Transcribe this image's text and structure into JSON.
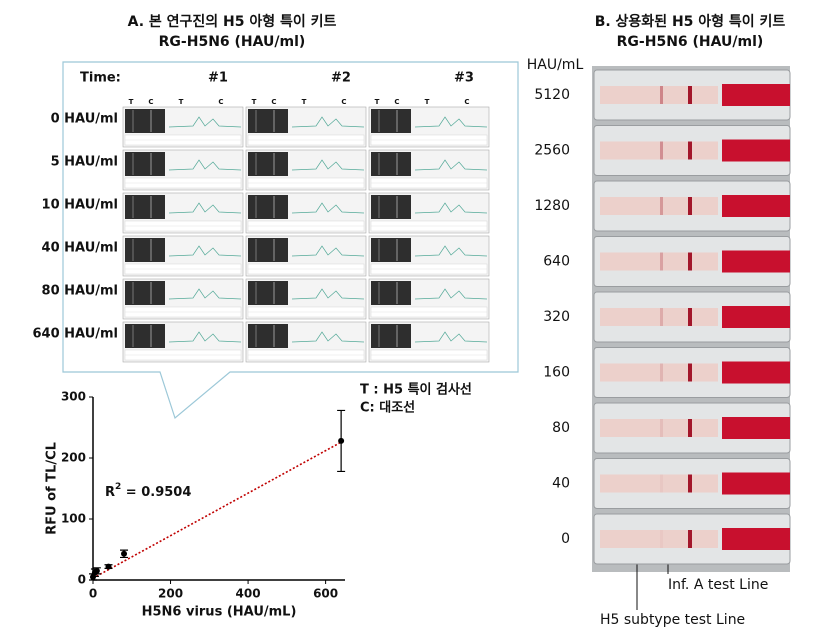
{
  "panel_a": {
    "title": "A. 본 연구진의 H5  아형 특이 키트",
    "subtitle": "RG-H5N6 (HAU/ml)",
    "time_label": "Time:",
    "columns": [
      "#1",
      "#2",
      "#3"
    ],
    "lane_labels": [
      "T",
      "C",
      "T",
      "C"
    ],
    "rows": [
      "0 HAU/ml",
      "5 HAU/ml",
      "10 HAU/ml",
      "40 HAU/ml",
      "80 HAU/ml",
      "640 HAU/ml"
    ],
    "legend": [
      "T : H5 특이 검사선",
      "C:  대조선"
    ]
  },
  "chart_data": {
    "type": "scatter",
    "x": [
      0,
      5,
      10,
      40,
      80,
      640
    ],
    "values": [
      5,
      12,
      15,
      22,
      43,
      228
    ],
    "errors": [
      5,
      6,
      5,
      3,
      6,
      50
    ],
    "color": "#000000",
    "trendline": {
      "x": [
        0,
        640
      ],
      "values": [
        3,
        226
      ],
      "color": "#c00000"
    },
    "xlim": [
      0,
      650
    ],
    "ylim": [
      0,
      300
    ],
    "xticks": [
      0,
      200,
      400,
      600
    ],
    "yticks": [
      0,
      100,
      200,
      300
    ],
    "xlabel": "H5N6 virus (HAU/mL)",
    "ylabel": "RFU of TL/CL",
    "annotation": {
      "text": "R",
      "sup": "2",
      "rest": " = 0.9504"
    }
  },
  "panel_b": {
    "title": "B. 상용화된 H5  아형 특이 키트",
    "subtitle": "RG-H5N6 (HAU/ml)",
    "unit_label": "HAU/mL",
    "rows": [
      "5120",
      "2560",
      "1280",
      "640",
      "320",
      "160",
      "80",
      "40",
      "0"
    ],
    "annotations": [
      "Inf. A test Line",
      "H5 subtype test Line"
    ]
  }
}
